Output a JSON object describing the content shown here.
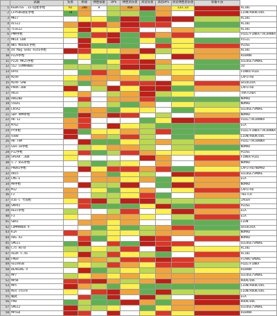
{
  "headers": [
    "",
    "武器",
    "伤害",
    "射速",
    "弹匣容量",
    "DPS",
    "弹匣总伤害",
    "消音伤害",
    "消音DPS",
    "消音弹匣总伤害",
    "装备干员"
  ],
  "rows": [
    {
      "n": "1",
      "w": "KEBATOS .357短枪手枪",
      "c": [
        "92",
        "200",
        "8",
        "",
        "460",
        "",
        "",
        "133.33",
        "",
        "276"
      ],
      "o": "ALIBI"
    },
    {
      "n": "2",
      "w": "LFP586转轮手枪",
      "c": [
        "78",
        "",
        "",
        "",
        "",
        "",
        "",
        "",
        "",
        ""
      ],
      "o": "LION/ROOK/DOC"
    },
    {
      "n": "3",
      "w": "MK17",
      "c": [
        "",
        "",
        "",
        "",
        "",
        "",
        "",
        "",
        "",
        ""
      ],
      "o": "ALIBI"
    },
    {
      "n": "4",
      "w": "ACS12",
      "c": [
        "",
        "",
        "",
        "",
        "",
        "",
        "",
        "",
        "",
        ""
      ],
      "o": "ALIBI"
    },
    {
      "n": "5",
      "w": "TCSG12",
      "c": [
        "",
        "",
        "",
        "",
        "",
        "",
        "",
        "",
        "",
        ""
      ],
      "o": "ALIBI"
    },
    {
      "n": "6",
      "w": "PMM手枪",
      "c": [
        "",
        "",
        "",
        "",
        "",
        "",
        "",
        "",
        "",
        ""
      ],
      "o": "FUZE/FINKA/TACHANKA"
    },
    {
      "n": "7",
      "w": "MK14 EBR",
      "c": [
        "",
        "",
        "",
        "",
        "",
        "",
        "",
        "",
        "",
        ""
      ],
      "o": "VIGIL"
    },
    {
      "n": "8",
      "w": "NK5 MOUSOC手枪",
      "c": [
        "",
        "",
        "",
        "",
        "",
        "",
        "",
        "",
        "",
        ""
      ],
      "o": "PLUSE"
    },
    {
      "n": "9",
      "w": "44 Mag Semi-Auto手枪",
      "c": [
        "",
        "",
        "",
        "",
        "",
        "",
        "",
        "",
        "",
        ""
      ],
      "o": "ALIBI"
    },
    {
      "n": "10",
      "w": "PZ29手枪",
      "c": [
        "",
        "",
        "",
        "",
        "",
        "",
        "",
        "",
        "",
        ""
      ],
      "o": "HIBANA"
    },
    {
      "n": "11",
      "w": "P226 MK25手枪",
      "c": [
        "",
        "",
        "",
        "",
        "",
        "",
        "",
        "",
        "",
        ""
      ],
      "o": "SLEDGE/SMOKE"
    },
    {
      "n": "12",
      "w": "552 COMMANDO",
      "c": [
        "",
        "",
        "",
        "",
        "",
        "",
        "",
        "",
        "",
        ""
      ],
      "o": "IQ"
    },
    {
      "n": "13",
      "w": "6P41",
      "c": [
        "",
        "",
        "",
        "",
        "",
        "",
        "",
        "",
        "",
        ""
      ],
      "o": "FINKA/FUZE"
    },
    {
      "n": "14",
      "w": "M249",
      "c": [
        "",
        "",
        "",
        "",
        "",
        "",
        "",
        "",
        "",
        ""
      ],
      "o": "CAPITAO"
    },
    {
      "n": "15",
      "w": "M249 SAW",
      "c": [
        "",
        "",
        "",
        "",
        "",
        "",
        "",
        "",
        "",
        ""
      ],
      "o": "GRIDLOCK"
    },
    {
      "n": "16",
      "w": "PARA-308",
      "c": [
        "",
        "",
        "",
        "",
        "",
        "",
        "",
        "",
        "",
        ""
      ],
      "o": "CAPITAO"
    },
    {
      "n": "17",
      "w": "AR33",
      "c": [
        "",
        "",
        "",
        "",
        "",
        "",
        "",
        "",
        "",
        ""
      ],
      "o": "THATCHER"
    },
    {
      "n": "18",
      "w": "AR6200",
      "c": [
        "",
        "",
        "",
        "",
        "",
        "",
        "",
        "",
        "",
        ""
      ],
      "o": "NOMAD"
    },
    {
      "n": "19",
      "w": "556XI",
      "c": [
        "",
        "",
        "",
        "",
        "",
        "",
        "",
        "",
        "",
        ""
      ],
      "o": "NOMAD"
    },
    {
      "n": "20",
      "w": "L85A2",
      "c": [
        "",
        "",
        "",
        "",
        "",
        "",
        "",
        "",
        "",
        ""
      ],
      "o": "SLEDGE/SMOKE"
    },
    {
      "n": "21",
      "w": "SDP 9MM手枪",
      "c": [
        "",
        "",
        "",
        "",
        "",
        "",
        "",
        "",
        "",
        ""
      ],
      "o": "NOMAD"
    },
    {
      "n": "22",
      "w": "AK-12",
      "c": [
        "",
        "",
        "",
        "",
        "",
        "",
        "",
        "",
        "",
        ""
      ],
      "o": "FUZE/TACHANKA"
    },
    {
      "n": "23",
      "w": "M762",
      "c": [
        "",
        "",
        "",
        "",
        "",
        "",
        "",
        "",
        "",
        ""
      ],
      "o": "ELA"
    },
    {
      "n": "24",
      "w": "PY手枪",
      "c": [
        "",
        "",
        "",
        "",
        "",
        "",
        "",
        "",
        "",
        ""
      ],
      "o": "FUZE/FINKA/TACHANKA"
    },
    {
      "n": "25",
      "w": "V308",
      "c": [
        "",
        "",
        "",
        "",
        "",
        "",
        "",
        "",
        "",
        ""
      ],
      "o": "LION/ROOK/DOC"
    },
    {
      "n": "26",
      "w": "AK-74M",
      "c": [
        "",
        "",
        "",
        "",
        "",
        "",
        "",
        "",
        "",
        ""
      ],
      "o": "FUZE/TACHANKA"
    },
    {
      "n": "27",
      "w": "GSH-18手枪",
      "c": [
        "",
        "",
        "",
        "",
        "",
        "",
        "",
        "",
        "",
        ""
      ],
      "o": "NOMAD"
    },
    {
      "n": "28",
      "w": "P12手枪",
      "c": [
        "",
        "",
        "",
        "",
        "",
        "",
        "",
        "",
        "",
        ""
      ],
      "o": "PLUSE"
    },
    {
      "n": "29",
      "w": "SPEAR .308",
      "c": [
        "",
        "",
        "",
        "",
        "",
        "",
        "",
        "",
        "",
        ""
      ],
      "o": "FINKA/FUZE"
    },
    {
      "n": "30",
      "w": "5.7 USG手枪",
      "c": [
        "",
        "",
        "",
        "",
        "",
        "",
        "",
        "",
        "",
        ""
      ],
      "o": "NOMAD"
    },
    {
      "n": "31",
      "w": "PRB92手枪",
      "c": [
        "",
        "",
        "",
        "",
        "",
        "",
        "",
        "",
        "",
        ""
      ],
      "o": "CAPITAO/NOMAD"
    },
    {
      "n": "32",
      "w": "AR15",
      "c": [
        "",
        "",
        "",
        "",
        "",
        "",
        "",
        "",
        "",
        ""
      ],
      "o": "SLEDGE/SMOKE"
    },
    {
      "n": "33",
      "w": "LMG-E",
      "c": [
        "",
        "",
        "",
        "",
        "",
        "",
        "",
        "",
        "",
        ""
      ],
      "o": "ELA"
    },
    {
      "n": "34",
      "w": "M9手枪",
      "c": [
        "",
        "",
        "",
        "",
        "",
        "",
        "",
        "",
        "",
        ""
      ],
      "o": "NOMAD"
    },
    {
      "n": "35",
      "w": "M12",
      "c": [
        "",
        "",
        "",
        "",
        "",
        "",
        "",
        "",
        "",
        ""
      ],
      "o": "CAPITAO"
    },
    {
      "n": "36",
      "w": "F2",
      "c": [
        "",
        "",
        "",
        "",
        "",
        "",
        "",
        "",
        "",
        ""
      ],
      "o": "TWITCH"
    },
    {
      "n": "37",
      "w": "416-C 卡宾枪",
      "c": [
        "",
        "",
        "",
        "",
        "",
        "",
        "",
        "",
        "",
        ""
      ],
      "o": "JAGER"
    },
    {
      "n": "38",
      "w": "SMP45",
      "c": [
        "",
        "",
        "",
        "",
        "",
        "",
        "",
        "",
        "",
        ""
      ],
      "o": "PLUSE"
    },
    {
      "n": "39",
      "w": "RG15手枪",
      "c": [
        "",
        "",
        "",
        "",
        "",
        "",
        "",
        "",
        "",
        ""
      ],
      "o": "ELA"
    },
    {
      "n": "40",
      "w": "F3",
      "c": [
        "",
        "",
        "",
        "",
        "",
        "",
        "",
        "",
        "",
        ""
      ],
      "o": "ELA"
    },
    {
      "n": "41",
      "w": "SBA1",
      "c": [
        "",
        "",
        "",
        "",
        "",
        "",
        "",
        "",
        "",
        ""
      ],
      "o": "LION"
    },
    {
      "n": "42",
      "w": "COMMANDO 9",
      "c": [
        "",
        "",
        "",
        "",
        "",
        "",
        "",
        "",
        "",
        ""
      ],
      "o": "GRIDLOCK"
    },
    {
      "n": "43",
      "w": "K1A",
      "c": [
        "",
        "",
        "",
        "",
        "",
        "",
        "",
        "",
        "",
        ""
      ],
      "o": "NOMAD"
    },
    {
      "n": "44",
      "w": "AUG A3",
      "c": [
        "",
        "",
        "",
        "",
        "",
        "",
        "",
        "",
        "",
        ""
      ],
      "o": "NOMAD"
    },
    {
      "n": "45",
      "w": "SMG11",
      "c": [
        "",
        "",
        "",
        "",
        "",
        "",
        "",
        "",
        "",
        ""
      ],
      "o": "SLEDGE/SMOKE"
    },
    {
      "n": "46",
      "w": "C75 AUTO",
      "c": [
        "",
        "",
        "",
        "",
        "",
        "",
        "",
        "",
        "",
        ""
      ],
      "o": "ALIBI"
    },
    {
      "n": "47",
      "w": "ALDA 5.56",
      "c": [
        "",
        "",
        "",
        "",
        "",
        "",
        "",
        "",
        "",
        ""
      ],
      "o": "ALIBI"
    },
    {
      "n": "48",
      "w": "FMG9",
      "c": [
        "",
        "",
        "",
        "",
        "",
        "",
        "",
        "",
        "",
        ""
      ],
      "o": "FLAKK/SMOKE"
    },
    {
      "n": "49",
      "w": "9x19VSN",
      "c": [
        "",
        "",
        "",
        "",
        "",
        "",
        "",
        "",
        "",
        ""
      ],
      "o": "FUZE/FINKA"
    },
    {
      "n": "50",
      "w": "BEARING 9",
      "c": [
        "",
        "",
        "",
        "",
        "",
        "",
        "",
        "",
        "",
        ""
      ],
      "o": "HIBANA"
    },
    {
      "n": "51",
      "w": "MP7",
      "c": [
        "",
        "",
        "",
        "",
        "",
        "",
        "",
        "",
        "",
        ""
      ],
      "o": "SLEDGE/SMOKE"
    },
    {
      "n": "52",
      "w": "MP5K",
      "c": [
        "",
        "",
        "",
        "",
        "",
        "",
        "",
        "",
        "",
        ""
      ],
      "o": "ROOK/DOC"
    },
    {
      "n": "53",
      "w": "MP5",
      "c": [
        "",
        "",
        "",
        "",
        "",
        "",
        "",
        "",
        "",
        ""
      ],
      "o": "LION/ROOK/DOC"
    },
    {
      "n": "54",
      "w": "Mx4 storm",
      "c": [
        "",
        "",
        "",
        "",
        "",
        "",
        "",
        "",
        "",
        ""
      ],
      "o": "LION/ROOK/DOC"
    },
    {
      "n": "55",
      "w": "蝎式",
      "c": [
        "",
        "",
        "",
        "",
        "",
        "",
        "",
        "",
        "",
        ""
      ],
      "o": "ELA"
    },
    {
      "n": "56",
      "w": "P90",
      "c": [
        "",
        "",
        "",
        "",
        "",
        "",
        "",
        "",
        "",
        ""
      ],
      "o": "ROOK/DOC"
    },
    {
      "n": "57",
      "w": "SMG12",
      "c": [
        "",
        "",
        "",
        "",
        "",
        "",
        "",
        "",
        "",
        ""
      ],
      "o": "SLEDGE/SMOKE"
    },
    {
      "n": "58",
      "w": "MP5SD",
      "c": [
        "",
        "",
        "",
        "",
        "",
        "",
        "",
        "",
        "",
        ""
      ],
      "o": "HIBANA"
    }
  ]
}
